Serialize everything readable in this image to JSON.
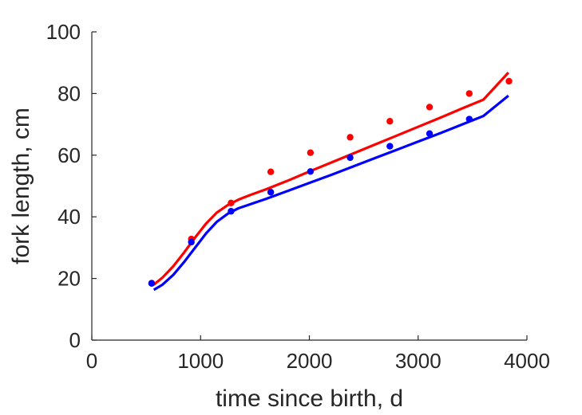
{
  "chart_data": {
    "type": "line",
    "title": "",
    "xlabel": "time since birth, d",
    "ylabel": "fork length, cm",
    "xlim": [
      0,
      4000
    ],
    "ylim": [
      0,
      100
    ],
    "xticks": [
      0,
      1000,
      2000,
      3000,
      4000
    ],
    "yticks": [
      0,
      20,
      40,
      60,
      80,
      100
    ],
    "grid": false,
    "legend": "none",
    "series": [
      {
        "color": "#ff0000",
        "points_x": [
          550,
          915,
          1280,
          1645,
          2010,
          2375,
          2740,
          3105,
          3470,
          3835
        ],
        "points_y": [
          18.5,
          32.8,
          44.5,
          54.6,
          60.8,
          65.8,
          71.0,
          75.6,
          80.0,
          84.0
        ],
        "fit_x": [
          570,
          650,
          750,
          850,
          950,
          1050,
          1150,
          1250,
          1350,
          1450,
          1600,
          1800,
          2000,
          2200,
          2400,
          2600,
          2800,
          3000,
          3200,
          3400,
          3600,
          3830
        ],
        "fit_y": [
          18.0,
          20.3,
          24.0,
          28.5,
          33.3,
          37.8,
          41.4,
          43.8,
          45.6,
          47.0,
          48.9,
          51.7,
          54.7,
          57.6,
          60.5,
          63.4,
          66.3,
          69.2,
          72.1,
          75.1,
          78.0,
          86.8
        ]
      },
      {
        "color": "#0000ff",
        "points_x": [
          550,
          915,
          1280,
          1645,
          2010,
          2375,
          2740,
          3105,
          3470
        ],
        "points_y": [
          18.4,
          31.8,
          41.8,
          48.0,
          54.7,
          59.2,
          62.9,
          67.0,
          71.7
        ],
        "fit_x": [
          570,
          650,
          750,
          850,
          950,
          1050,
          1150,
          1250,
          1350,
          1450,
          1600,
          1800,
          2000,
          2200,
          2400,
          2600,
          2800,
          3000,
          3200,
          3400,
          3600,
          3830
        ],
        "fit_y": [
          16.3,
          18.0,
          21.2,
          25.4,
          30.0,
          34.6,
          38.4,
          41.0,
          42.8,
          44.0,
          45.8,
          48.4,
          51.0,
          53.6,
          56.3,
          59.0,
          61.7,
          64.4,
          67.1,
          69.9,
          72.7,
          79.3
        ]
      }
    ]
  }
}
